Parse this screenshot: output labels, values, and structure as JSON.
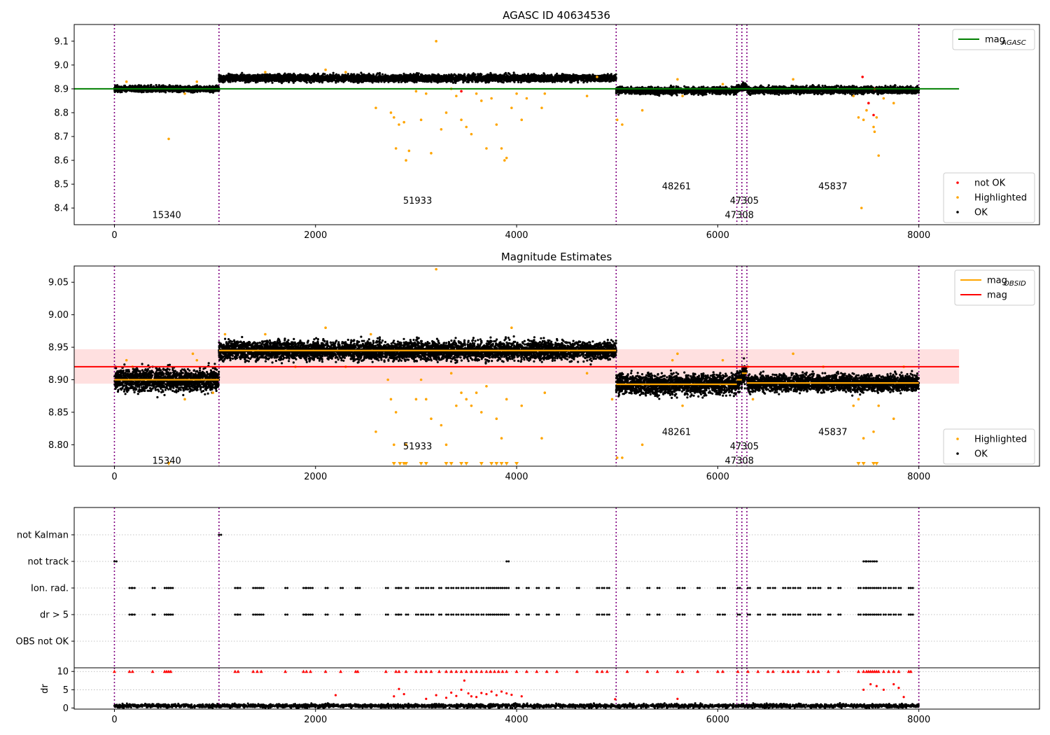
{
  "chart_data": [
    {
      "id": "agasc",
      "type": "scatter",
      "title": "AGASC ID 40634536",
      "xlim": [
        -400,
        9200
      ],
      "ylim": [
        8.33,
        9.17
      ],
      "xticks": [
        0,
        2000,
        4000,
        6000,
        8000
      ],
      "yticks": [
        8.4,
        8.5,
        8.6,
        8.7,
        8.8,
        8.9,
        9.0,
        9.1
      ],
      "ytick_labels": [
        "8.4",
        "8.5",
        "8.6",
        "8.7",
        "8.8",
        "8.9",
        "9.0",
        "9.1"
      ],
      "obs_boundaries": [
        0,
        1040,
        4990,
        6190,
        6240,
        6290,
        8000
      ],
      "observations": [
        {
          "label": "15340",
          "x_start": 0,
          "x_end": 1040,
          "level": 8.9,
          "scatter": 0.025,
          "label_x": 520,
          "label_y": 8.37
        },
        {
          "label": "51933",
          "x_start": 1040,
          "x_end": 4990,
          "level": 8.945,
          "scatter": 0.03,
          "label_x": 3015,
          "label_y": 8.43
        },
        {
          "label": "48261",
          "x_start": 4990,
          "x_end": 6190,
          "level": 8.893,
          "scatter": 0.03,
          "label_x": 5590,
          "label_y": 8.49
        },
        {
          "label": "47308",
          "x_start": 6190,
          "x_end": 6240,
          "level": 8.9,
          "scatter": 0.03,
          "label_x": 6215,
          "label_y": 8.37
        },
        {
          "label": "47305",
          "x_start": 6240,
          "x_end": 6290,
          "level": 8.91,
          "scatter": 0.03,
          "label_x": 6265,
          "label_y": 8.43
        },
        {
          "label": "45837",
          "x_start": 6290,
          "x_end": 8000,
          "level": 8.895,
          "scatter": 0.03,
          "label_x": 7145,
          "label_y": 8.49
        }
      ],
      "mag_agasc": 8.9,
      "mag_agasc_xrange": [
        -400,
        8400
      ],
      "highlighted": [
        [
          540,
          8.69
        ],
        [
          120,
          8.93
        ],
        [
          820,
          8.93
        ],
        [
          700,
          8.88
        ],
        [
          2600,
          8.82
        ],
        [
          2750,
          8.8
        ],
        [
          2780,
          8.78
        ],
        [
          2800,
          8.65
        ],
        [
          2830,
          8.75
        ],
        [
          2880,
          8.76
        ],
        [
          2900,
          8.6
        ],
        [
          2930,
          8.64
        ],
        [
          3000,
          8.89
        ],
        [
          3050,
          8.77
        ],
        [
          3100,
          8.88
        ],
        [
          3150,
          8.63
        ],
        [
          3200,
          9.1
        ],
        [
          3250,
          8.73
        ],
        [
          3300,
          8.8
        ],
        [
          3350,
          8.9
        ],
        [
          3400,
          8.87
        ],
        [
          3450,
          8.77
        ],
        [
          3500,
          8.74
        ],
        [
          3550,
          8.71
        ],
        [
          3600,
          8.88
        ],
        [
          3650,
          8.85
        ],
        [
          3700,
          8.65
        ],
        [
          3750,
          8.86
        ],
        [
          3800,
          8.75
        ],
        [
          3850,
          8.65
        ],
        [
          3880,
          8.6
        ],
        [
          3900,
          8.61
        ],
        [
          3950,
          8.82
        ],
        [
          4000,
          8.88
        ],
        [
          4050,
          8.77
        ],
        [
          4100,
          8.86
        ],
        [
          4250,
          8.82
        ],
        [
          4280,
          8.88
        ],
        [
          4700,
          8.87
        ],
        [
          5000,
          8.77
        ],
        [
          5050,
          8.75
        ],
        [
          5250,
          8.81
        ],
        [
          5600,
          8.94
        ],
        [
          5650,
          8.87
        ],
        [
          6050,
          8.92
        ],
        [
          6750,
          8.94
        ],
        [
          7350,
          8.87
        ],
        [
          7400,
          8.78
        ],
        [
          7430,
          8.4
        ],
        [
          7450,
          8.77
        ],
        [
          7480,
          8.81
        ],
        [
          7550,
          8.74
        ],
        [
          7560,
          8.72
        ],
        [
          7580,
          8.78
        ],
        [
          7600,
          8.62
        ],
        [
          7650,
          8.86
        ],
        [
          7750,
          8.84
        ],
        [
          1500,
          8.97
        ],
        [
          2100,
          8.98
        ],
        [
          2300,
          8.97
        ],
        [
          4800,
          8.95
        ]
      ],
      "not_ok": [
        [
          3450,
          8.89
        ],
        [
          7440,
          8.95
        ],
        [
          7500,
          8.84
        ],
        [
          7550,
          8.79
        ],
        [
          7560,
          8.9
        ]
      ],
      "legend_top": [
        {
          "label": "mag",
          "sub": "AGASC",
          "color": "#008000"
        }
      ],
      "legend_bottom": [
        {
          "label": "not OK",
          "color": "#ff0000"
        },
        {
          "label": "Highlighted",
          "color": "#ffa500"
        },
        {
          "label": "OK",
          "color": "#000000"
        }
      ]
    },
    {
      "id": "estimates",
      "type": "scatter",
      "title": "Magnitude Estimates",
      "xlim": [
        -400,
        9200
      ],
      "ylim": [
        8.767,
        9.075
      ],
      "xticks": [
        0,
        2000,
        4000,
        6000,
        8000
      ],
      "yticks": [
        8.8,
        8.85,
        8.9,
        8.95,
        9.0,
        9.05
      ],
      "ytick_labels": [
        "8.80",
        "8.85",
        "8.90",
        "8.95",
        "9.00",
        "9.05"
      ],
      "obs_boundaries": [
        0,
        1040,
        4990,
        6190,
        6240,
        6290,
        8000
      ],
      "observations": [
        {
          "label": "15340",
          "x_start": 0,
          "x_end": 1040,
          "level": 8.9,
          "scatter": 0.012,
          "label_x": 520,
          "label_y": 8.775
        },
        {
          "label": "51933",
          "x_start": 1040,
          "x_end": 4990,
          "level": 8.945,
          "scatter": 0.01,
          "label_x": 3015,
          "label_y": 8.797
        },
        {
          "label": "48261",
          "x_start": 4990,
          "x_end": 6190,
          "level": 8.893,
          "scatter": 0.011,
          "label_x": 5590,
          "label_y": 8.819
        },
        {
          "label": "47308",
          "x_start": 6190,
          "x_end": 6240,
          "level": 8.9,
          "scatter": 0.012,
          "label_x": 6215,
          "label_y": 8.775
        },
        {
          "label": "47305",
          "x_start": 6240,
          "x_end": 6290,
          "level": 8.91,
          "scatter": 0.012,
          "label_x": 6265,
          "label_y": 8.797
        },
        {
          "label": "45837",
          "x_start": 6290,
          "x_end": 8000,
          "level": 8.895,
          "scatter": 0.009,
          "label_x": 7145,
          "label_y": 8.819
        }
      ],
      "mag": 8.92,
      "mag_band": [
        8.894,
        8.947
      ],
      "mag_xrange": [
        -400,
        8400
      ],
      "highlighted": [
        [
          120,
          8.93
        ],
        [
          180,
          8.92
        ],
        [
          700,
          8.87
        ],
        [
          780,
          8.94
        ],
        [
          820,
          8.93
        ],
        [
          980,
          8.88
        ],
        [
          1100,
          8.97
        ],
        [
          1500,
          8.97
        ],
        [
          1800,
          8.92
        ],
        [
          2100,
          8.98
        ],
        [
          2300,
          8.92
        ],
        [
          2550,
          8.97
        ],
        [
          2600,
          8.82
        ],
        [
          2720,
          8.9
        ],
        [
          2750,
          8.87
        ],
        [
          2780,
          8.8
        ],
        [
          2800,
          8.85
        ],
        [
          2900,
          8.8
        ],
        [
          3000,
          8.87
        ],
        [
          3050,
          8.9
        ],
        [
          3100,
          8.87
        ],
        [
          3150,
          8.84
        ],
        [
          3200,
          9.07
        ],
        [
          3250,
          8.83
        ],
        [
          3300,
          8.8
        ],
        [
          3350,
          8.91
        ],
        [
          3400,
          8.86
        ],
        [
          3450,
          8.88
        ],
        [
          3500,
          8.87
        ],
        [
          3550,
          8.86
        ],
        [
          3600,
          8.88
        ],
        [
          3650,
          8.85
        ],
        [
          3700,
          8.89
        ],
        [
          3800,
          8.84
        ],
        [
          3850,
          8.81
        ],
        [
          3900,
          8.87
        ],
        [
          3950,
          8.98
        ],
        [
          4050,
          8.86
        ],
        [
          4250,
          8.81
        ],
        [
          4280,
          8.88
        ],
        [
          4700,
          8.91
        ],
        [
          4950,
          8.87
        ],
        [
          5000,
          8.78
        ],
        [
          5050,
          8.78
        ],
        [
          5250,
          8.8
        ],
        [
          5550,
          8.93
        ],
        [
          5600,
          8.94
        ],
        [
          5650,
          8.86
        ],
        [
          6050,
          8.93
        ],
        [
          6300,
          8.92
        ],
        [
          6350,
          8.87
        ],
        [
          6750,
          8.94
        ],
        [
          7050,
          8.92
        ],
        [
          7350,
          8.86
        ],
        [
          7400,
          8.87
        ],
        [
          7450,
          8.81
        ],
        [
          7550,
          8.82
        ],
        [
          7600,
          8.86
        ],
        [
          7750,
          8.84
        ],
        [
          7850,
          8.92
        ]
      ],
      "clipped_low": [
        540,
        2780,
        2840,
        2880,
        2900,
        3050,
        3100,
        3300,
        3350,
        3450,
        3500,
        3650,
        3750,
        3800,
        3850,
        3900,
        4000,
        7400,
        7450,
        7550,
        7580
      ],
      "legend_top": [
        {
          "label": "mag",
          "sub": "OBSID",
          "color": "#ffa500"
        },
        {
          "label": "mag",
          "sub": "",
          "color": "#ff0000"
        }
      ],
      "legend_bottom": [
        {
          "label": "Highlighted",
          "color": "#ffa500"
        },
        {
          "label": "OK",
          "color": "#000000"
        }
      ]
    },
    {
      "id": "flags",
      "type": "scatter",
      "xlim": [
        -400,
        9200
      ],
      "obs_boundaries": [
        0,
        1040,
        4990,
        6190,
        6240,
        6290,
        8000
      ],
      "categories": [
        "not Kalman",
        "not track",
        "Ion. rad.",
        "dr > 5",
        "OBS not OK"
      ],
      "not_kalman": [
        1040
      ],
      "not_track": [
        0,
        3900,
        7450,
        7480,
        7520,
        7560
      ],
      "ion_rad": [
        150,
        180,
        380,
        500,
        520,
        540,
        560,
        1200,
        1230,
        1380,
        1420,
        1460,
        1700,
        1880,
        1910,
        1950,
        2100,
        2250,
        2400,
        2420,
        2700,
        2800,
        2830,
        2900,
        3000,
        3050,
        3100,
        3150,
        3230,
        3300,
        3350,
        3400,
        3450,
        3500,
        3550,
        3600,
        3650,
        3700,
        3740,
        3780,
        3820,
        3860,
        3900,
        4000,
        4100,
        4200,
        4300,
        4400,
        4600,
        4800,
        4850,
        4900,
        5100,
        5300,
        5400,
        5600,
        5650,
        5800,
        6000,
        6050,
        6200,
        6300,
        6400,
        6500,
        6550,
        6650,
        6700,
        6750,
        6800,
        6900,
        6950,
        7000,
        7100,
        7200,
        7400,
        7450,
        7480,
        7520,
        7560,
        7600,
        7650,
        7700,
        7750,
        7800,
        7900,
        7920
      ],
      "dr_above_5": [
        150,
        180,
        380,
        500,
        520,
        540,
        560,
        1200,
        1230,
        1380,
        1420,
        1460,
        1700,
        1880,
        1910,
        1950,
        2100,
        2250,
        2400,
        2420,
        2700,
        2800,
        2830,
        2900,
        3000,
        3050,
        3100,
        3150,
        3230,
        3300,
        3350,
        3400,
        3450,
        3500,
        3550,
        3600,
        3650,
        3700,
        3740,
        3780,
        3820,
        3860,
        3900,
        4000,
        4100,
        4200,
        4300,
        4400,
        4600,
        4800,
        4850,
        4900,
        5100,
        5300,
        5400,
        5600,
        5650,
        5800,
        6000,
        6050,
        6200,
        6300,
        6400,
        6500,
        6550,
        6650,
        6700,
        6750,
        6800,
        6900,
        6950,
        7000,
        7100,
        7200,
        7400,
        7450,
        7480,
        7520,
        7560,
        7600,
        7650,
        7700,
        7750,
        7800,
        7900,
        7920
      ]
    },
    {
      "id": "dr",
      "type": "scatter",
      "xlim": [
        -400,
        9200
      ],
      "ylim": [
        -0.3,
        11
      ],
      "ylabel": "dr",
      "xticks": [
        0,
        2000,
        4000,
        6000,
        8000
      ],
      "yticks": [
        0,
        5,
        10
      ],
      "ytick_labels": [
        "0",
        "5",
        "10"
      ],
      "obs_boundaries": [
        0,
        1040,
        4990,
        6190,
        6240,
        6290,
        8000
      ],
      "dr_low_scatter": 0.35,
      "dr_clipped": [
        0,
        150,
        180,
        380,
        500,
        520,
        540,
        560,
        1200,
        1230,
        1380,
        1420,
        1460,
        1700,
        1880,
        1910,
        1950,
        2100,
        2250,
        2400,
        2420,
        2700,
        2800,
        2830,
        2900,
        3000,
        3050,
        3100,
        3150,
        3230,
        3300,
        3350,
        3400,
        3450,
        3500,
        3550,
        3600,
        3650,
        3700,
        3740,
        3780,
        3820,
        3860,
        3900,
        4000,
        4100,
        4200,
        4300,
        4400,
        4600,
        4800,
        4850,
        4900,
        5100,
        5300,
        5400,
        5600,
        5650,
        5800,
        6000,
        6050,
        6200,
        6300,
        6400,
        6500,
        6550,
        6650,
        6700,
        6750,
        6800,
        6900,
        6950,
        7000,
        7100,
        7200,
        7400,
        7450,
        7480,
        7500,
        7520,
        7540,
        7560,
        7580,
        7600,
        7650,
        7700,
        7750,
        7800,
        7900,
        7920
      ],
      "dr_red": [
        [
          2200,
          3.5
        ],
        [
          2780,
          3.2
        ],
        [
          2830,
          5.2
        ],
        [
          2880,
          3.8
        ],
        [
          3100,
          2.5
        ],
        [
          3200,
          3.5
        ],
        [
          3300,
          2.8
        ],
        [
          3350,
          4.2
        ],
        [
          3400,
          3.3
        ],
        [
          3450,
          5.0
        ],
        [
          3480,
          7.5
        ],
        [
          3520,
          4.0
        ],
        [
          3550,
          3.2
        ],
        [
          3600,
          3.0
        ],
        [
          3650,
          4.1
        ],
        [
          3700,
          3.8
        ],
        [
          3750,
          4.5
        ],
        [
          3800,
          3.5
        ],
        [
          3850,
          4.5
        ],
        [
          3900,
          4.0
        ],
        [
          3950,
          3.6
        ],
        [
          4050,
          3.2
        ],
        [
          7450,
          5.0
        ],
        [
          7520,
          6.5
        ],
        [
          7580,
          6.0
        ],
        [
          7650,
          5.0
        ],
        [
          7750,
          6.5
        ],
        [
          7800,
          5.5
        ],
        [
          7850,
          3.0
        ],
        [
          4980,
          2.4
        ],
        [
          5600,
          2.5
        ]
      ]
    }
  ]
}
